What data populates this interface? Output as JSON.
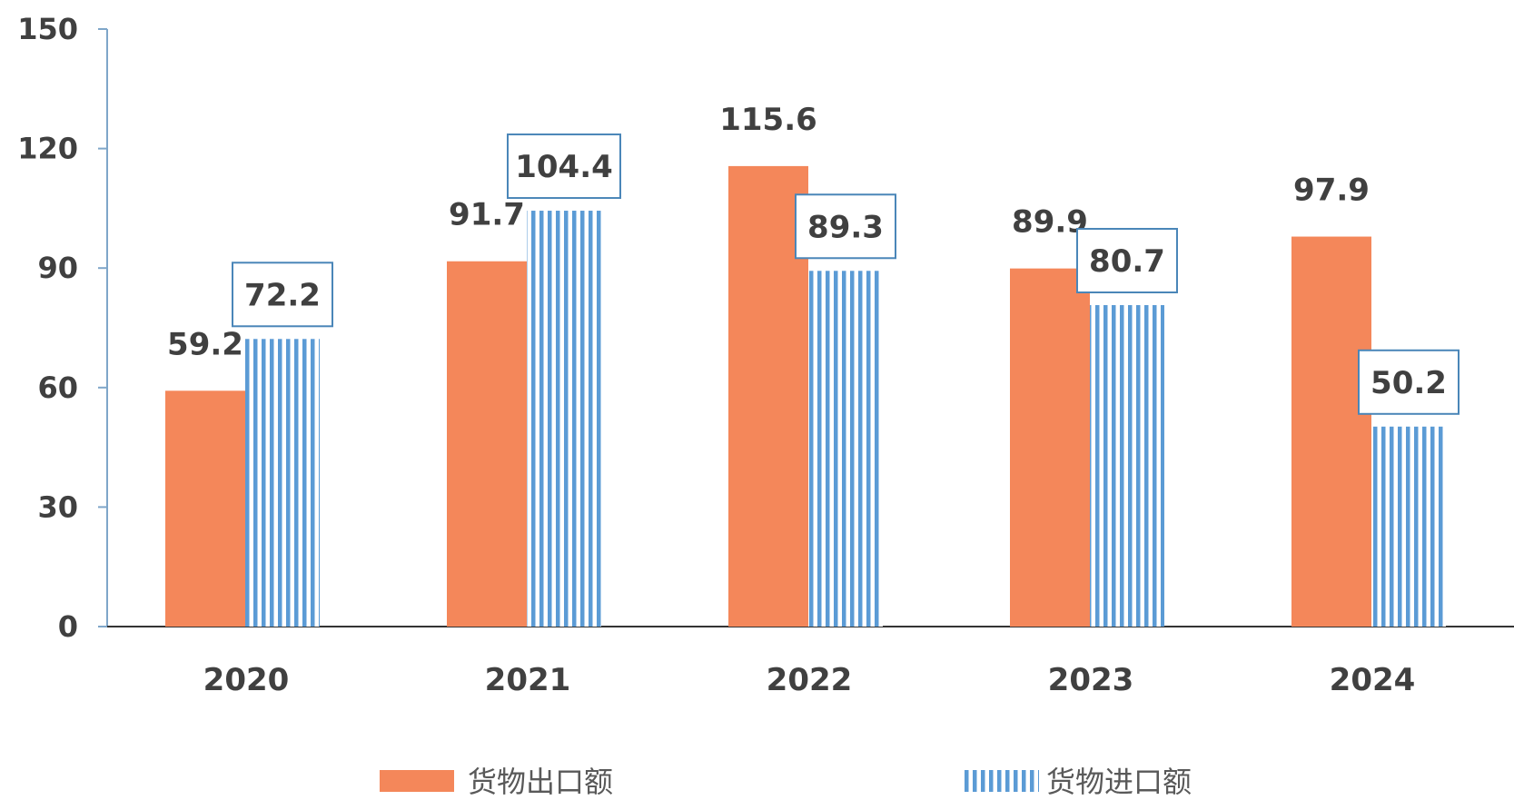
{
  "chart_data": {
    "type": "bar",
    "categories": [
      "2020",
      "2021",
      "2022",
      "2023",
      "2024"
    ],
    "series": [
      {
        "name": "货物出口额",
        "values": [
          59.2,
          91.7,
          115.6,
          89.9,
          97.9
        ],
        "color": "#f4875a",
        "style": "solid",
        "labels": [
          "59.2",
          "91.7",
          "115.6",
          "89.9",
          "97.9"
        ]
      },
      {
        "name": "货物进口额",
        "values": [
          72.2,
          104.4,
          89.3,
          80.7,
          50.2
        ],
        "color": "#5b9bd5",
        "style": "vertical-stripes",
        "labels": [
          "72.2",
          "104.4",
          "89.3",
          "80.7",
          "50.2"
        ]
      }
    ],
    "ylim": [
      0,
      150
    ],
    "yticks": [
      "0",
      "30",
      "60",
      "90",
      "120",
      "150"
    ],
    "grid": false,
    "legend_position": "bottom",
    "axis_color": "#7fa6c9",
    "label_box_color": "#4a86b8"
  }
}
